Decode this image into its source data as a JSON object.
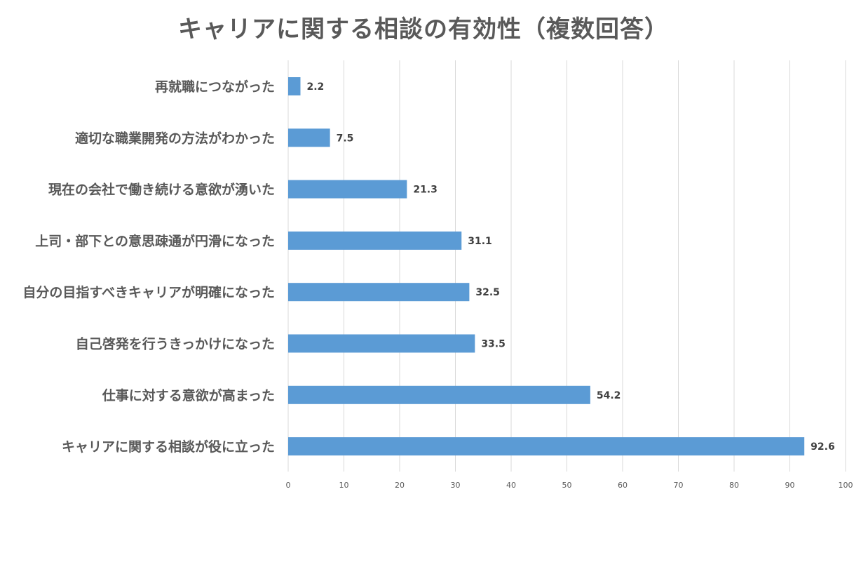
{
  "chart_data": {
    "type": "bar",
    "orientation": "horizontal",
    "title": "キャリアに関する相談の有効性（複数回答）",
    "xlabel": "",
    "ylabel": "",
    "xlim": [
      0,
      100
    ],
    "ticks": [
      "0",
      "10",
      "20",
      "30",
      "40",
      "50",
      "60",
      "70",
      "80",
      "90",
      "100"
    ],
    "grid": true,
    "categories": [
      "再就職につながった",
      "適切な職業開発の方法がわかった",
      "現在の会社で働き続ける意欲が湧いた",
      "上司・部下との意思疎通が円滑になった",
      "自分の目指すべきキャリアが明確になった",
      "自己啓発を行うきっかけになった",
      "仕事に対する意欲が高まった",
      "キャリアに関する相談が役に立った"
    ],
    "values": [
      2.2,
      7.5,
      21.3,
      31.1,
      32.5,
      33.5,
      54.2,
      92.6
    ],
    "value_labels": [
      "2.2",
      "7.5",
      "21.3",
      "31.1",
      "32.5",
      "33.5",
      "54.2",
      "92.6"
    ],
    "colors": {
      "bar": "#5b9bd5",
      "grid": "#d9d9d9"
    }
  }
}
